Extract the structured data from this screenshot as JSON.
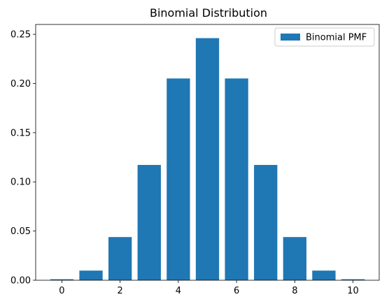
{
  "chart_data": {
    "type": "bar",
    "title": "Binomial Distribution",
    "xlabel": "",
    "ylabel": "",
    "x": [
      0,
      1,
      2,
      3,
      4,
      5,
      6,
      7,
      8,
      9,
      10
    ],
    "series": [
      {
        "name": "Binomial PMF",
        "color": "#1f77b4",
        "values": [
          0.001,
          0.0098,
          0.0439,
          0.1172,
          0.2051,
          0.2461,
          0.2051,
          0.1172,
          0.0439,
          0.0098,
          0.001
        ]
      }
    ],
    "xlim": [
      -0.9,
      10.9
    ],
    "ylim": [
      0,
      0.26
    ],
    "xticks": [
      0,
      2,
      4,
      6,
      8,
      10
    ],
    "xtick_labels": [
      "0",
      "2",
      "4",
      "6",
      "8",
      "10"
    ],
    "yticks": [
      0.0,
      0.05,
      0.1,
      0.15,
      0.2,
      0.25
    ],
    "ytick_labels": [
      "0.00",
      "0.05",
      "0.10",
      "0.15",
      "0.20",
      "0.25"
    ],
    "grid": false,
    "legend": {
      "position": "top-right",
      "entries": [
        "Binomial PMF"
      ]
    }
  }
}
